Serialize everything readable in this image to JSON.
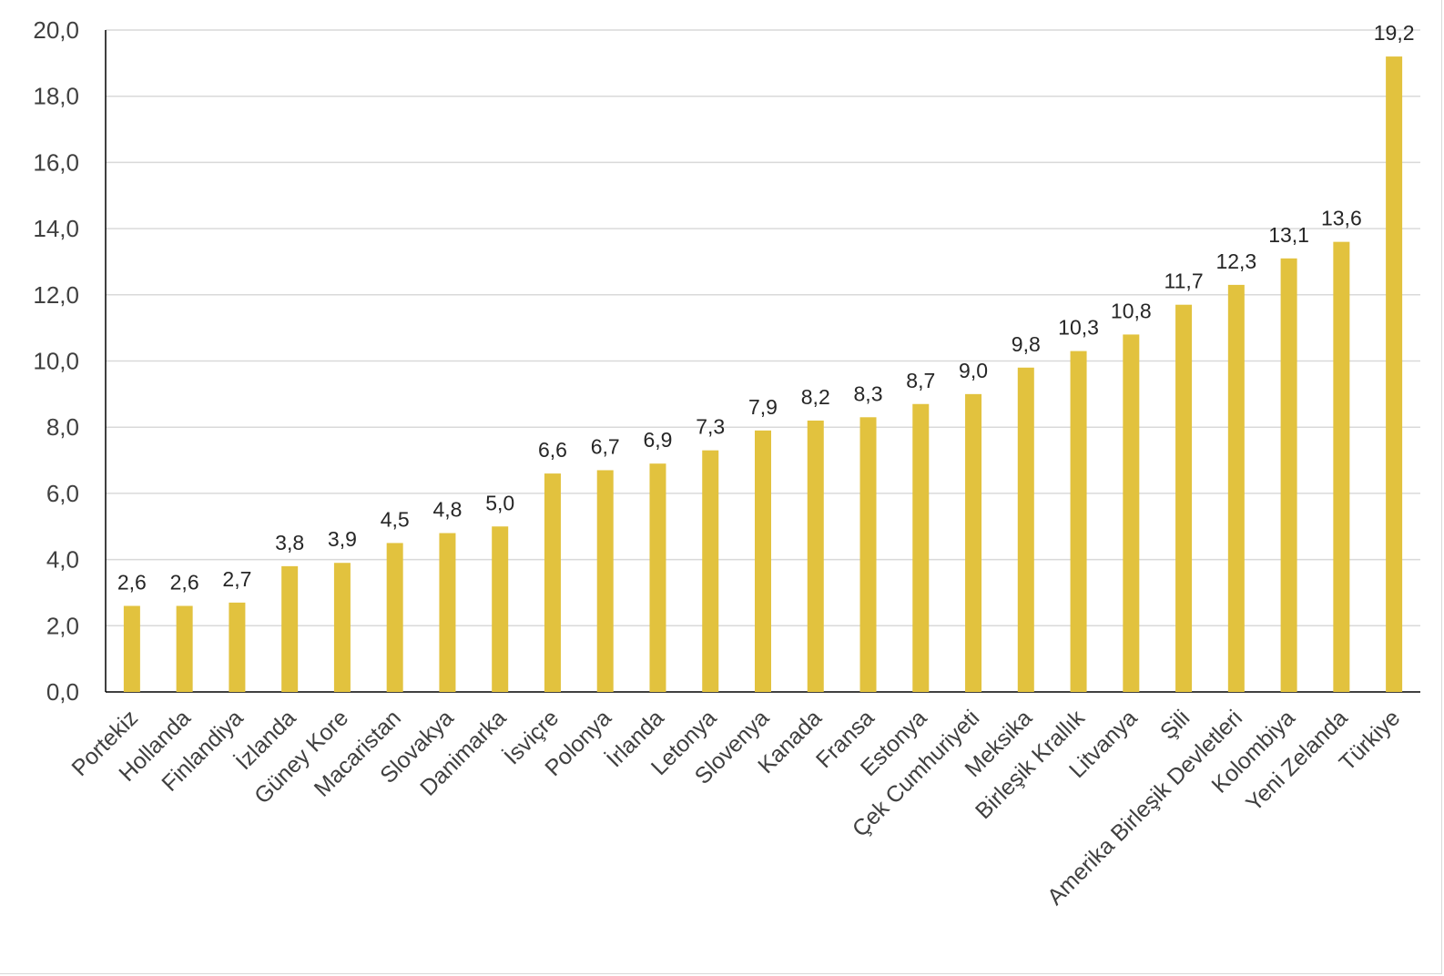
{
  "chart_data": {
    "type": "bar",
    "title": "",
    "xlabel": "",
    "ylabel": "",
    "ylim": [
      0,
      20
    ],
    "yticks": [
      "0,0",
      "2,0",
      "4,0",
      "6,0",
      "8,0",
      "10,0",
      "12,0",
      "14,0",
      "16,0",
      "18,0",
      "20,0"
    ],
    "grid": true,
    "bar_color": "#e2c23e",
    "grid_color": "#d9d9d9",
    "categories": [
      "Portekiz",
      "Hollanda",
      "Finlandiya",
      "İzlanda",
      "Güney Kore",
      "Macaristan",
      "Slovakya",
      "Danimarka",
      "İsviçre",
      "Polonya",
      "İrlanda",
      "Letonya",
      "Slovenya",
      "Kanada",
      "Fransa",
      "Estonya",
      "Çek Cumhuriyeti",
      "Meksika",
      "Birleşik Krallık",
      "Litvanya",
      "Şili",
      "Amerika Birleşik Devletleri",
      "Kolombiya",
      "Yeni Zelanda",
      "Türkiye"
    ],
    "values": [
      2.6,
      2.6,
      2.7,
      3.8,
      3.9,
      4.5,
      4.8,
      5.0,
      6.6,
      6.7,
      6.9,
      7.3,
      7.9,
      8.2,
      8.3,
      8.7,
      9.0,
      9.8,
      10.3,
      10.8,
      11.7,
      12.3,
      13.1,
      13.6,
      19.2
    ],
    "data_labels": [
      "2,6",
      "2,6",
      "2,7",
      "3,8",
      "3,9",
      "4,5",
      "4,8",
      "5,0",
      "6,6",
      "6,7",
      "6,9",
      "7,3",
      "7,9",
      "8,2",
      "8,3",
      "8,7",
      "9,0",
      "9,8",
      "10,3",
      "10,8",
      "11,7",
      "12,3",
      "13,1",
      "13,6",
      "19,2"
    ]
  }
}
